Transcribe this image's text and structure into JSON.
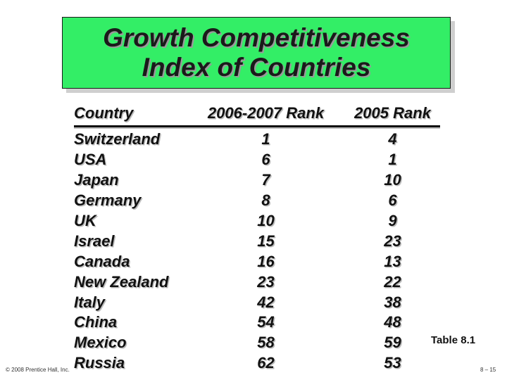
{
  "title": {
    "line1": "Growth Competitiveness",
    "line2": "Index of Countries"
  },
  "table": {
    "headers": [
      "Country",
      "2006-2007 Rank",
      "2005 Rank"
    ],
    "rows": [
      [
        "Switzerland",
        "1",
        "4"
      ],
      [
        "USA",
        "6",
        "1"
      ],
      [
        "Japan",
        "7",
        "10"
      ],
      [
        "Germany",
        "8",
        "6"
      ],
      [
        "UK",
        "10",
        "9"
      ],
      [
        "Israel",
        "15",
        "23"
      ],
      [
        "Canada",
        "16",
        "13"
      ],
      [
        "New Zealand",
        "23",
        "22"
      ],
      [
        "Italy",
        "42",
        "38"
      ],
      [
        "China",
        "54",
        "48"
      ],
      [
        "Mexico",
        "58",
        "59"
      ],
      [
        "Russia",
        "62",
        "53"
      ]
    ]
  },
  "table_note": "Table 8.1",
  "footer": {
    "copyright": "© 2008 Prentice Hall, Inc.",
    "page": "8 – 15"
  },
  "colors": {
    "title_background": "#33ee66",
    "text": "#111111"
  }
}
